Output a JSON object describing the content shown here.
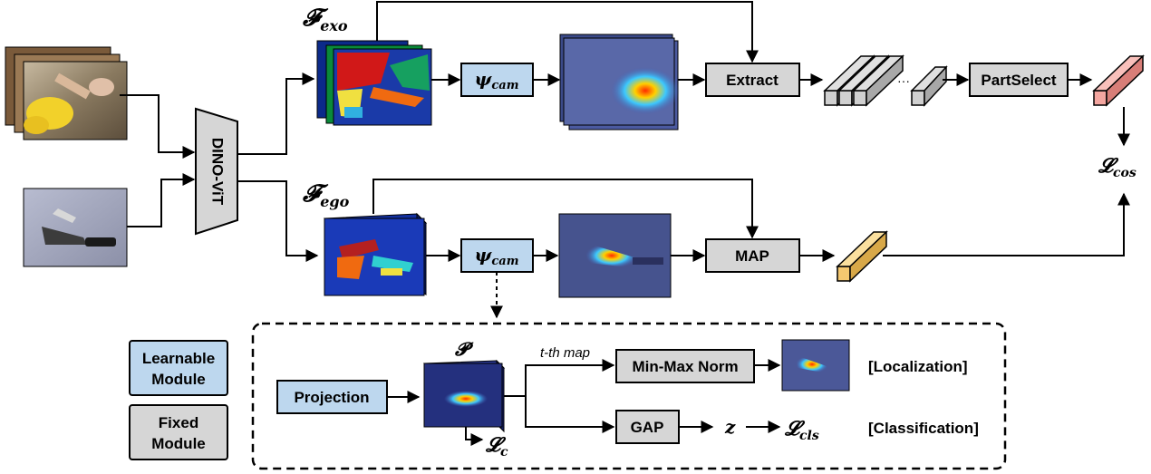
{
  "colors": {
    "learnable": "#bdd7ee",
    "fixed": "#d6d6d6",
    "target_feature": "#f4a6a0",
    "ego_feature": "#f5c870",
    "map_dark": "#1a1a6e"
  },
  "backbone": {
    "label": "DINO-ViT"
  },
  "exo_branch": {
    "feature_label": "𝓕",
    "feature_sub": "exo",
    "cam_label": "ψ",
    "cam_sub": "cam",
    "extract_label": "Extract",
    "ellipsis": "···",
    "partselect_label": "PartSelect"
  },
  "ego_branch": {
    "feature_label": "𝓕",
    "feature_sub": "ego",
    "cam_label": "ψ",
    "cam_sub": "cam",
    "map_label": "MAP"
  },
  "loss_cos": {
    "main": "𝓛",
    "sub": "cos"
  },
  "legend": {
    "learnable_line1": "Learnable",
    "learnable_line2": "Module",
    "fixed_line1": "Fixed",
    "fixed_line2": "Module"
  },
  "detail": {
    "projection_label": "Projection",
    "p_label": "𝓟",
    "tmap_label": "t-th map",
    "minmax_label": "Min-Max Norm",
    "gap_label": "GAP",
    "z_label": "z",
    "loss_c": {
      "main": "𝓛",
      "sub": "c"
    },
    "loss_cls": {
      "main": "𝓛",
      "sub": "cls"
    },
    "localization_label": "[Localization]",
    "classification_label": "[Classification]"
  }
}
